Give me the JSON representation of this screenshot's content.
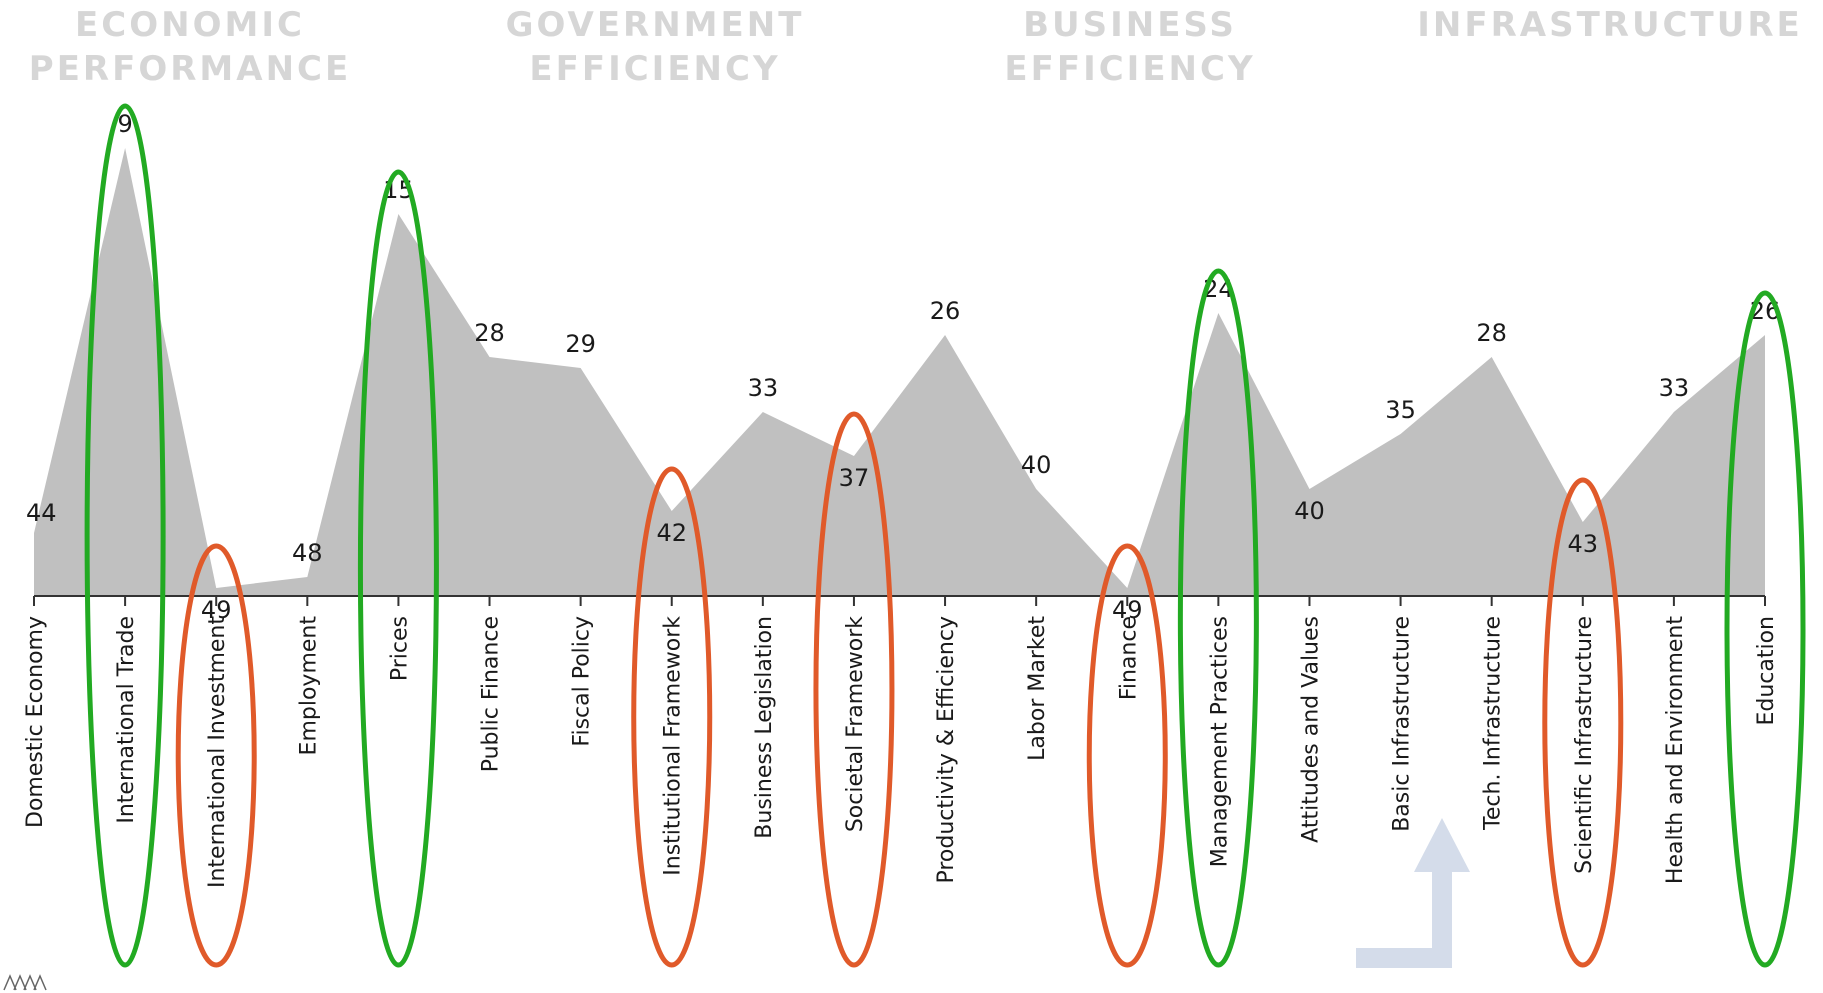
{
  "header": {
    "factors": [
      {
        "line1": "ECONOMIC",
        "line2": "PERFORMANCE"
      },
      {
        "line1": "GOVERNMENT",
        "line2": "EFFICIENCY"
      },
      {
        "line1": "BUSINESS",
        "line2": "EFFICIENCY"
      },
      {
        "line1": "INFRASTRUCTURE",
        "line2": ""
      }
    ]
  },
  "chart_data": {
    "type": "area",
    "categories": [
      "Domestic Economy",
      "International Trade",
      "International Investment",
      "Employment",
      "Prices",
      "Public Finance",
      "Fiscal Policy",
      "Institutional Framework",
      "Business Legislation",
      "Societal Framework",
      "Productivity & Efficiency",
      "Labor Market",
      "Finance",
      "Management Practices",
      "Attitudes and Values",
      "Basic Infrastructure",
      "Tech. Infrastructure",
      "Scientific Infrastructure",
      "Health and Environment",
      "Education"
    ],
    "values": [
      44,
      9,
      49,
      48,
      15,
      28,
      29,
      42,
      33,
      37,
      26,
      40,
      49,
      24,
      40,
      35,
      28,
      43,
      33,
      26
    ],
    "title": "",
    "xlabel": "",
    "ylabel": "",
    "ylim": [
      60,
      1
    ],
    "y_inverted": true,
    "grid": false,
    "fill_color": "#c0c0c0",
    "highlights": {
      "strength_color": "#22aa22",
      "weakness_color": "#e05a2a",
      "strengths": [
        "International Trade",
        "Prices",
        "Management Practices",
        "Education"
      ],
      "weaknesses": [
        "International Investment",
        "Institutional Framework",
        "Societal Framework",
        "Finance",
        "Scientific Infrastructure"
      ]
    },
    "arrow_color": "#d4dcea"
  }
}
